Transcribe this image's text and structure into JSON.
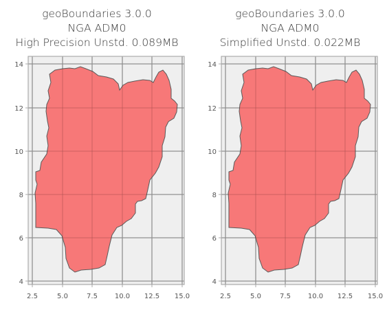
{
  "colors": {
    "fill": "#f77272",
    "stroke": "#5a5a5a",
    "plot_bg": "#efefef",
    "grid": "#b4b4b4",
    "spine": "#aaaaaa"
  },
  "chart_data": [
    {
      "type": "map",
      "title_lines": [
        "geoBoundaries 3.0.0",
        "NGA ADM0",
        "High Precision Unstd. 0.089MB"
      ],
      "xticks": [
        "2.5",
        "5.0",
        "7.5",
        "10.0",
        "12.5",
        "15.0"
      ],
      "yticks": [
        "4",
        "6",
        "8",
        "10",
        "12",
        "14"
      ],
      "grid": true
    },
    {
      "type": "map",
      "title_lines": [
        "geoBoundaries 3.0.0",
        "NGA ADM0",
        "Simplified Unstd. 0.022MB"
      ],
      "xticks": [
        "2.5",
        "5.0",
        "7.5",
        "10.0",
        "12.5",
        "15.0"
      ],
      "yticks": [
        "4",
        "6",
        "8",
        "10",
        "12",
        "14"
      ],
      "grid": true
    }
  ]
}
